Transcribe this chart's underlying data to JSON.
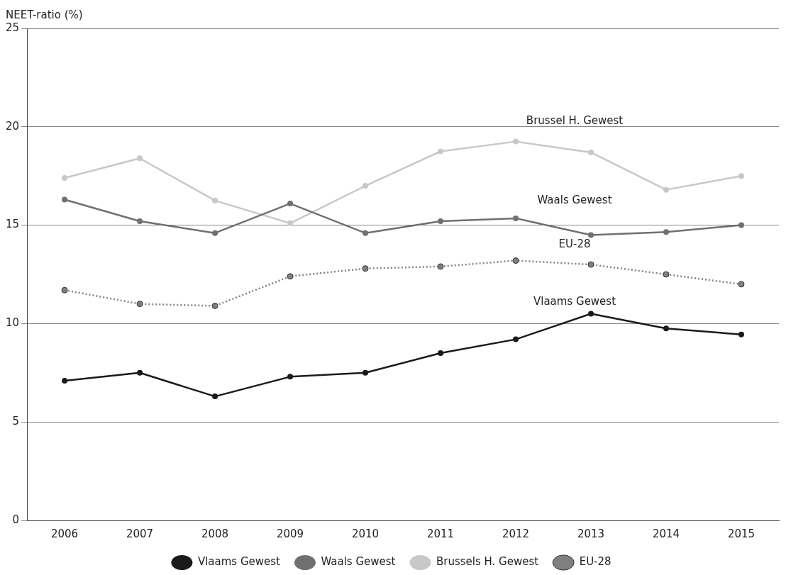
{
  "chart_data": {
    "type": "line",
    "ylabel": "NEET-ratio (%)",
    "categories": [
      "2006",
      "2007",
      "2008",
      "2009",
      "2010",
      "2011",
      "2012",
      "2013",
      "2014",
      "2015"
    ],
    "series": [
      {
        "name": "Vlaams Gewest",
        "color": "#1a1a1a",
        "values": [
          7.1,
          7.5,
          6.3,
          7.3,
          7.5,
          8.5,
          9.2,
          10.5,
          9.75,
          9.45
        ]
      },
      {
        "name": "Waals Gewest",
        "color": "#707070",
        "values": [
          16.3,
          15.2,
          14.6,
          16.1,
          14.6,
          15.2,
          15.35,
          14.5,
          14.65,
          15.0
        ]
      },
      {
        "name": "Brussels H. Gewest",
        "color": "#c8c8c8",
        "values": [
          17.4,
          18.4,
          16.25,
          15.1,
          17.0,
          18.75,
          19.25,
          18.7,
          16.8,
          17.5
        ]
      },
      {
        "name": "EU-28",
        "color": "#808080",
        "line_style": "dotted",
        "values": [
          11.7,
          11.0,
          10.9,
          12.4,
          12.8,
          12.9,
          13.2,
          13.0,
          12.5,
          12.0
        ]
      }
    ],
    "ylim": [
      0,
      25
    ],
    "yticks": [
      0,
      5,
      10,
      15,
      20,
      25
    ],
    "grid": "y",
    "legend": "bottom",
    "marker": "circle",
    "line_style": "solid",
    "annotations": [
      "Vlaams Gewest",
      "Waals Gewest",
      "Brussel H. Gewest",
      "EU-28"
    ]
  }
}
